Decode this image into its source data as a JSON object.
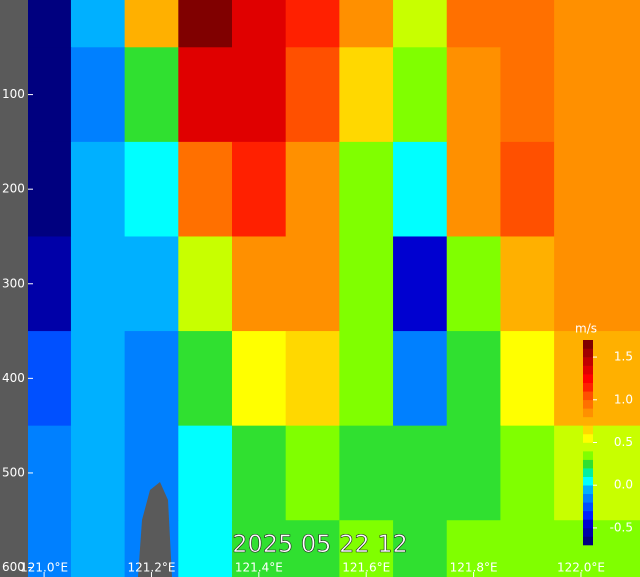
{
  "chart_data": {
    "type": "contour",
    "title": "2025 05 22 12",
    "x": [
      121.0,
      121.1,
      121.2,
      121.3,
      121.4,
      121.5,
      121.6,
      121.7,
      121.8,
      121.9,
      122.0
    ],
    "depth": [
      0,
      100,
      200,
      300,
      400,
      500,
      600
    ],
    "values": [
      [
        -0.6,
        -0.1,
        0.7,
        1.6,
        1.3,
        1.1,
        0.8,
        0.4,
        0.9,
        0.9,
        0.8
      ],
      [
        -0.6,
        -0.2,
        0.2,
        1.3,
        1.3,
        1.0,
        0.6,
        0.3,
        0.8,
        0.9,
        0.8
      ],
      [
        -0.6,
        -0.1,
        0.0,
        0.9,
        1.1,
        0.8,
        0.3,
        0.0,
        0.8,
        1.0,
        0.8
      ],
      [
        -0.5,
        -0.1,
        -0.05,
        0.4,
        0.8,
        0.8,
        0.3,
        -0.4,
        0.3,
        0.7,
        0.8
      ],
      [
        -0.3,
        -0.1,
        -0.15,
        0.25,
        0.5,
        0.6,
        0.3,
        -0.2,
        0.2,
        0.5,
        0.7
      ],
      [
        -0.15,
        -0.1,
        -0.2,
        0.0,
        0.2,
        0.35,
        0.25,
        0.2,
        0.25,
        0.35,
        0.4
      ],
      [
        -0.15,
        -0.1,
        -0.2,
        0.05,
        0.2,
        0.25,
        0.3,
        0.25,
        0.35,
        0.35,
        0.35
      ]
    ],
    "xlim": [
      120.97,
      122.11
    ],
    "ylim": [
      0,
      610
    ],
    "xticks": [
      {
        "value": 121.0,
        "label": "121.0°E"
      },
      {
        "value": 121.2,
        "label": "121.2°E"
      },
      {
        "value": 121.4,
        "label": "121.4°E"
      },
      {
        "value": 121.6,
        "label": "121.6°E"
      },
      {
        "value": 121.8,
        "label": "121.8°E"
      },
      {
        "value": 122.0,
        "label": "122.0°E"
      }
    ],
    "yticks": [
      100,
      200,
      300,
      400,
      500,
      600
    ],
    "colorbar_label": "m/s",
    "clim": [
      -0.7,
      1.7
    ],
    "cticks": [
      1.5,
      {
        "value": 1.0,
        "label": "1.0"
      },
      0.5,
      {
        "value": 0.0,
        "label": "0.0"
      },
      -0.5
    ],
    "colorscale": [
      "#00007f",
      "#0000a8",
      "#0000d0",
      "#0020ff",
      "#0050ff",
      "#0080ff",
      "#00b0ff",
      "#00ffff",
      "#00f0a0",
      "#30e030",
      "#80ff00",
      "#c8ff00",
      "#ffff00",
      "#ffd800",
      "#ffb000",
      "#ff9000",
      "#ff7000",
      "#ff5000",
      "#ff2000",
      "#ff0000",
      "#e00000",
      "#c00000",
      "#a00000",
      "#800000"
    ]
  }
}
